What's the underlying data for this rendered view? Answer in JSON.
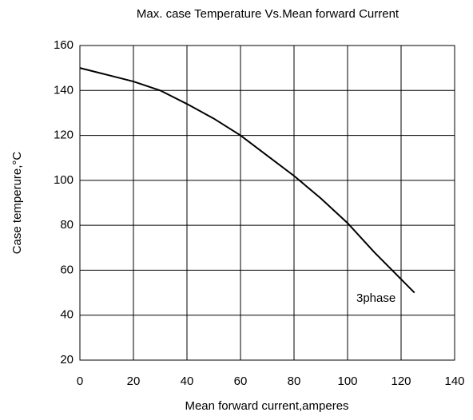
{
  "chart_data": {
    "type": "line",
    "title": "Max. case Temperature Vs.Mean forward Current",
    "x_label": "Mean forward current,amperes",
    "y_label": "Case temperure,°C",
    "x": [
      0,
      10,
      20,
      30,
      40,
      50,
      60,
      70,
      80,
      90,
      100,
      110,
      120,
      125
    ],
    "series": [
      {
        "name": "3phase",
        "color": "#000000",
        "values": [
          150,
          147,
          144,
          140,
          134,
          127.5,
          120,
          111,
          102,
          92,
          81,
          68,
          56,
          50
        ]
      }
    ],
    "xlim": [
      0,
      140
    ],
    "xticks": [
      0,
      20,
      40,
      60,
      80,
      100,
      120,
      140
    ],
    "ylim": [
      20,
      160
    ],
    "yticks": [
      20,
      40,
      60,
      80,
      100,
      120,
      140,
      160
    ],
    "grid": true
  }
}
